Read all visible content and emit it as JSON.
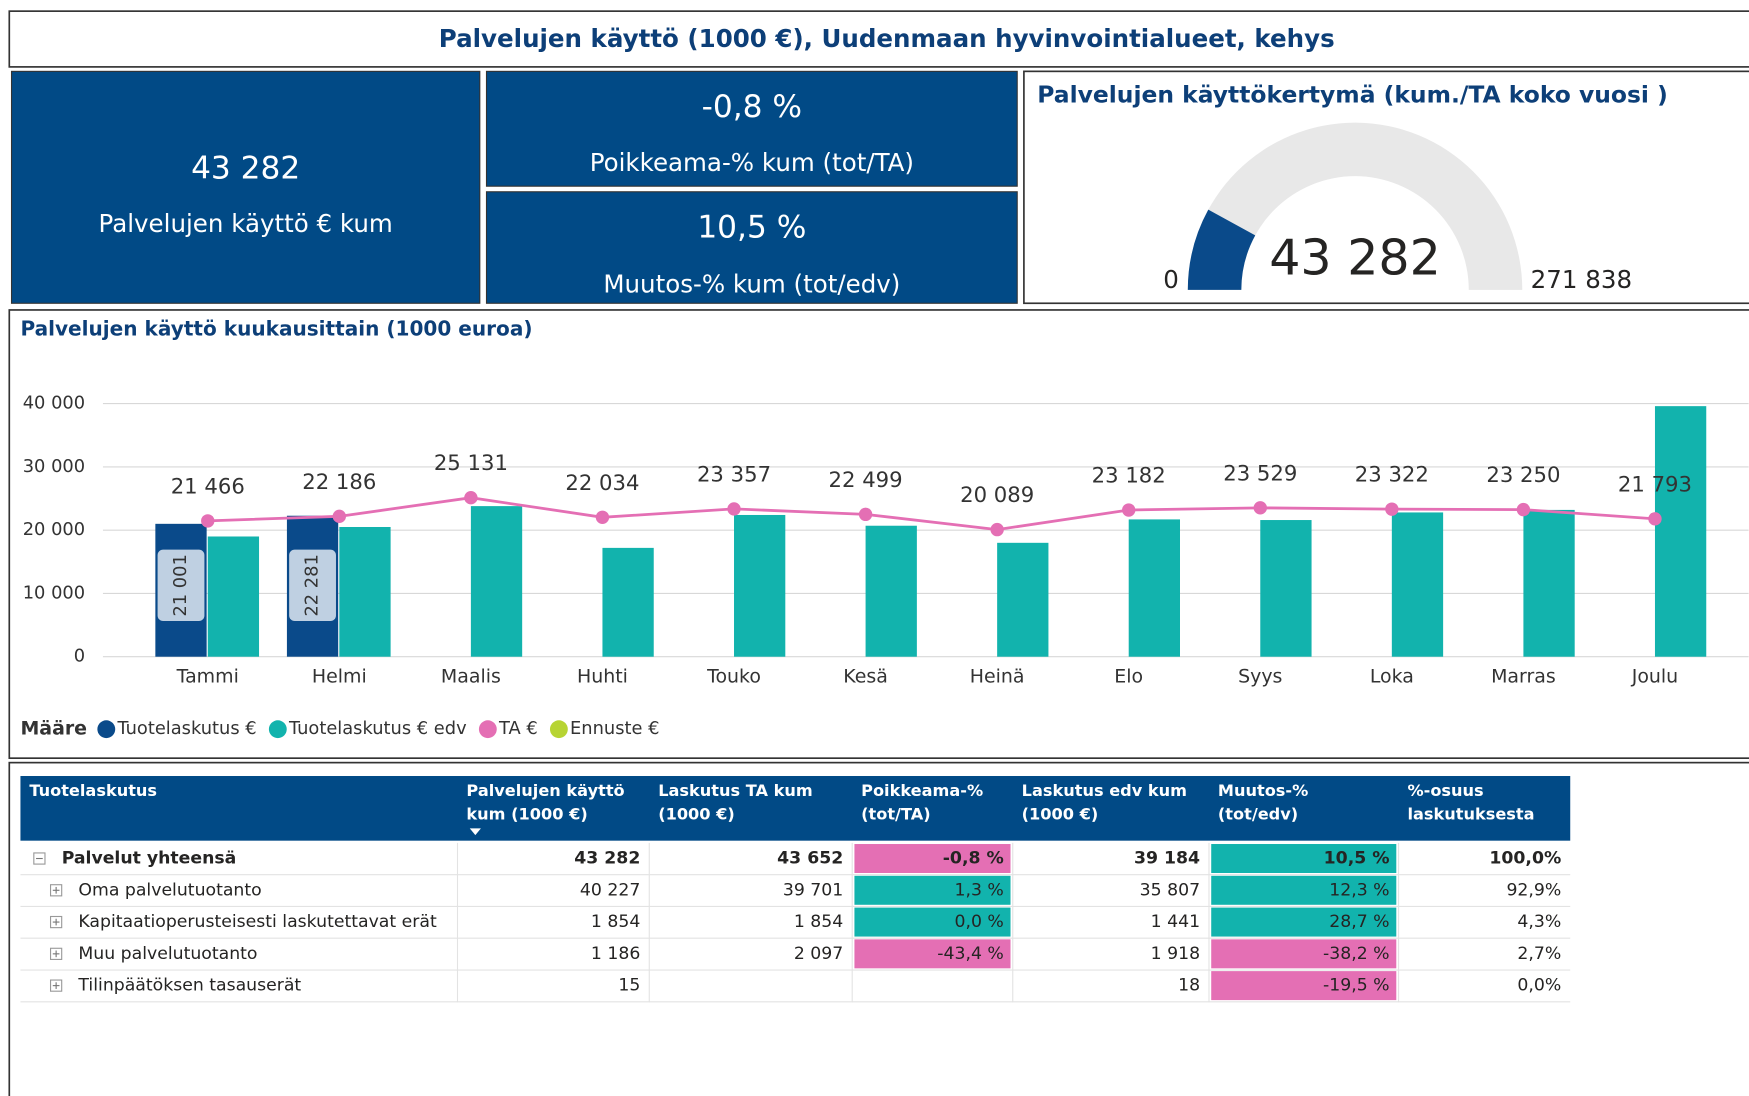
{
  "header": {
    "title": "Palvelujen käyttö (1000 €), Uudenmaan hyvinvointialueet, kehys"
  },
  "kpis": [
    {
      "value": "43 282",
      "label": "Palvelujen käyttö € kum"
    },
    {
      "value": "-0,8 %",
      "label": "Poikkeama-% kum (tot/TA)"
    },
    {
      "value": "10,5 %",
      "label": "Muutos-% kum (tot/edv)"
    }
  ],
  "gauge": {
    "title": "Palvelujen käyttökertymä (kum./TA koko vuosi )",
    "value": 43282,
    "value_label": "43 282",
    "min": 0,
    "max": {
      "value": 271838,
      "label": "271 838"
    }
  },
  "chart_data": {
    "type": "bar",
    "title": "Palvelujen käyttö kuukausittain (1000 euroa)",
    "categories": [
      "Tammi",
      "Helmi",
      "Maalis",
      "Huhti",
      "Touko",
      "Kesä",
      "Heinä",
      "Elo",
      "Syys",
      "Loka",
      "Marras",
      "Joulu"
    ],
    "legend_title": "Määre",
    "series": [
      {
        "name": "Tuotelaskutus €",
        "color": "#0a4a8a",
        "kind": "bar",
        "values": [
          21001,
          22281,
          null,
          null,
          null,
          null,
          null,
          null,
          null,
          null,
          null,
          null
        ],
        "value_labels": [
          "21 001",
          "22 281",
          null,
          null,
          null,
          null,
          null,
          null,
          null,
          null,
          null,
          null
        ]
      },
      {
        "name": "Tuotelaskutus € edv",
        "color": "#12b3ad",
        "kind": "bar",
        "values": [
          19000,
          20500,
          23800,
          17200,
          22400,
          20700,
          18000,
          21700,
          21600,
          22800,
          23200,
          39600
        ]
      },
      {
        "name": "TA €",
        "color": "#e46fb4",
        "kind": "line",
        "values": [
          21466,
          22186,
          25131,
          22034,
          23357,
          22499,
          20089,
          23182,
          23529,
          23322,
          23250,
          21793
        ],
        "value_labels": [
          "21 466",
          "22 186",
          "25 131",
          "22 034",
          "23 357",
          "22 499",
          "20 089",
          "23 182",
          "23 529",
          "23 322",
          "23 250",
          "21 793"
        ]
      },
      {
        "name": "Ennuste €",
        "color": "#b7d433",
        "kind": "line",
        "values": [
          null,
          null,
          null,
          null,
          null,
          null,
          null,
          null,
          null,
          null,
          null,
          null
        ]
      }
    ],
    "ylim": [
      0,
      40000
    ],
    "yticks": [
      0,
      {
        "value": 10000,
        "label": "10 000"
      },
      {
        "value": 20000,
        "label": "20 000"
      },
      {
        "value": 30000,
        "label": "30 000"
      },
      {
        "value": 40000,
        "label": "40 000"
      }
    ],
    "grid": true
  },
  "table": {
    "columns": [
      [
        "Tuotelaskutus"
      ],
      [
        "Palvelujen käyttö",
        "kum (1000 €)"
      ],
      [
        "Laskutus TA kum",
        "(1000 €)"
      ],
      [
        "Poikkeama-%",
        "(tot/TA)"
      ],
      [
        "Laskutus edv kum",
        "(1000 €)"
      ],
      [
        "Muutos-%",
        "(tot/edv)"
      ],
      [
        "%-osuus",
        "laskutuksesta"
      ]
    ],
    "rows": [
      {
        "cells": [
          "Palvelut yhteensä",
          "43 282",
          "43 652",
          "-0,8 %",
          "39 184",
          "10,5 %",
          "100,0%"
        ]
      },
      {
        "cells": [
          "Oma palvelutuotanto",
          "40 227",
          "39 701",
          "1,3 %",
          "35 807",
          "12,3 %",
          "92,9%"
        ]
      },
      {
        "cells": [
          "Kapitaatioperusteisesti laskutettavat erät",
          "1 854",
          "1 854",
          "0,0 %",
          "1 441",
          "28,7 %",
          "4,3%"
        ]
      },
      {
        "cells": [
          "Muu palvelutuotanto",
          "1 186",
          "2 097",
          "-43,4 %",
          "1 918",
          "-38,2 %",
          "2,7%"
        ]
      },
      {
        "cells": [
          "Tilinpäätöksen tasauserät",
          "15",
          null,
          null,
          "18",
          "-19,5 %",
          "0,0%"
        ]
      }
    ]
  }
}
